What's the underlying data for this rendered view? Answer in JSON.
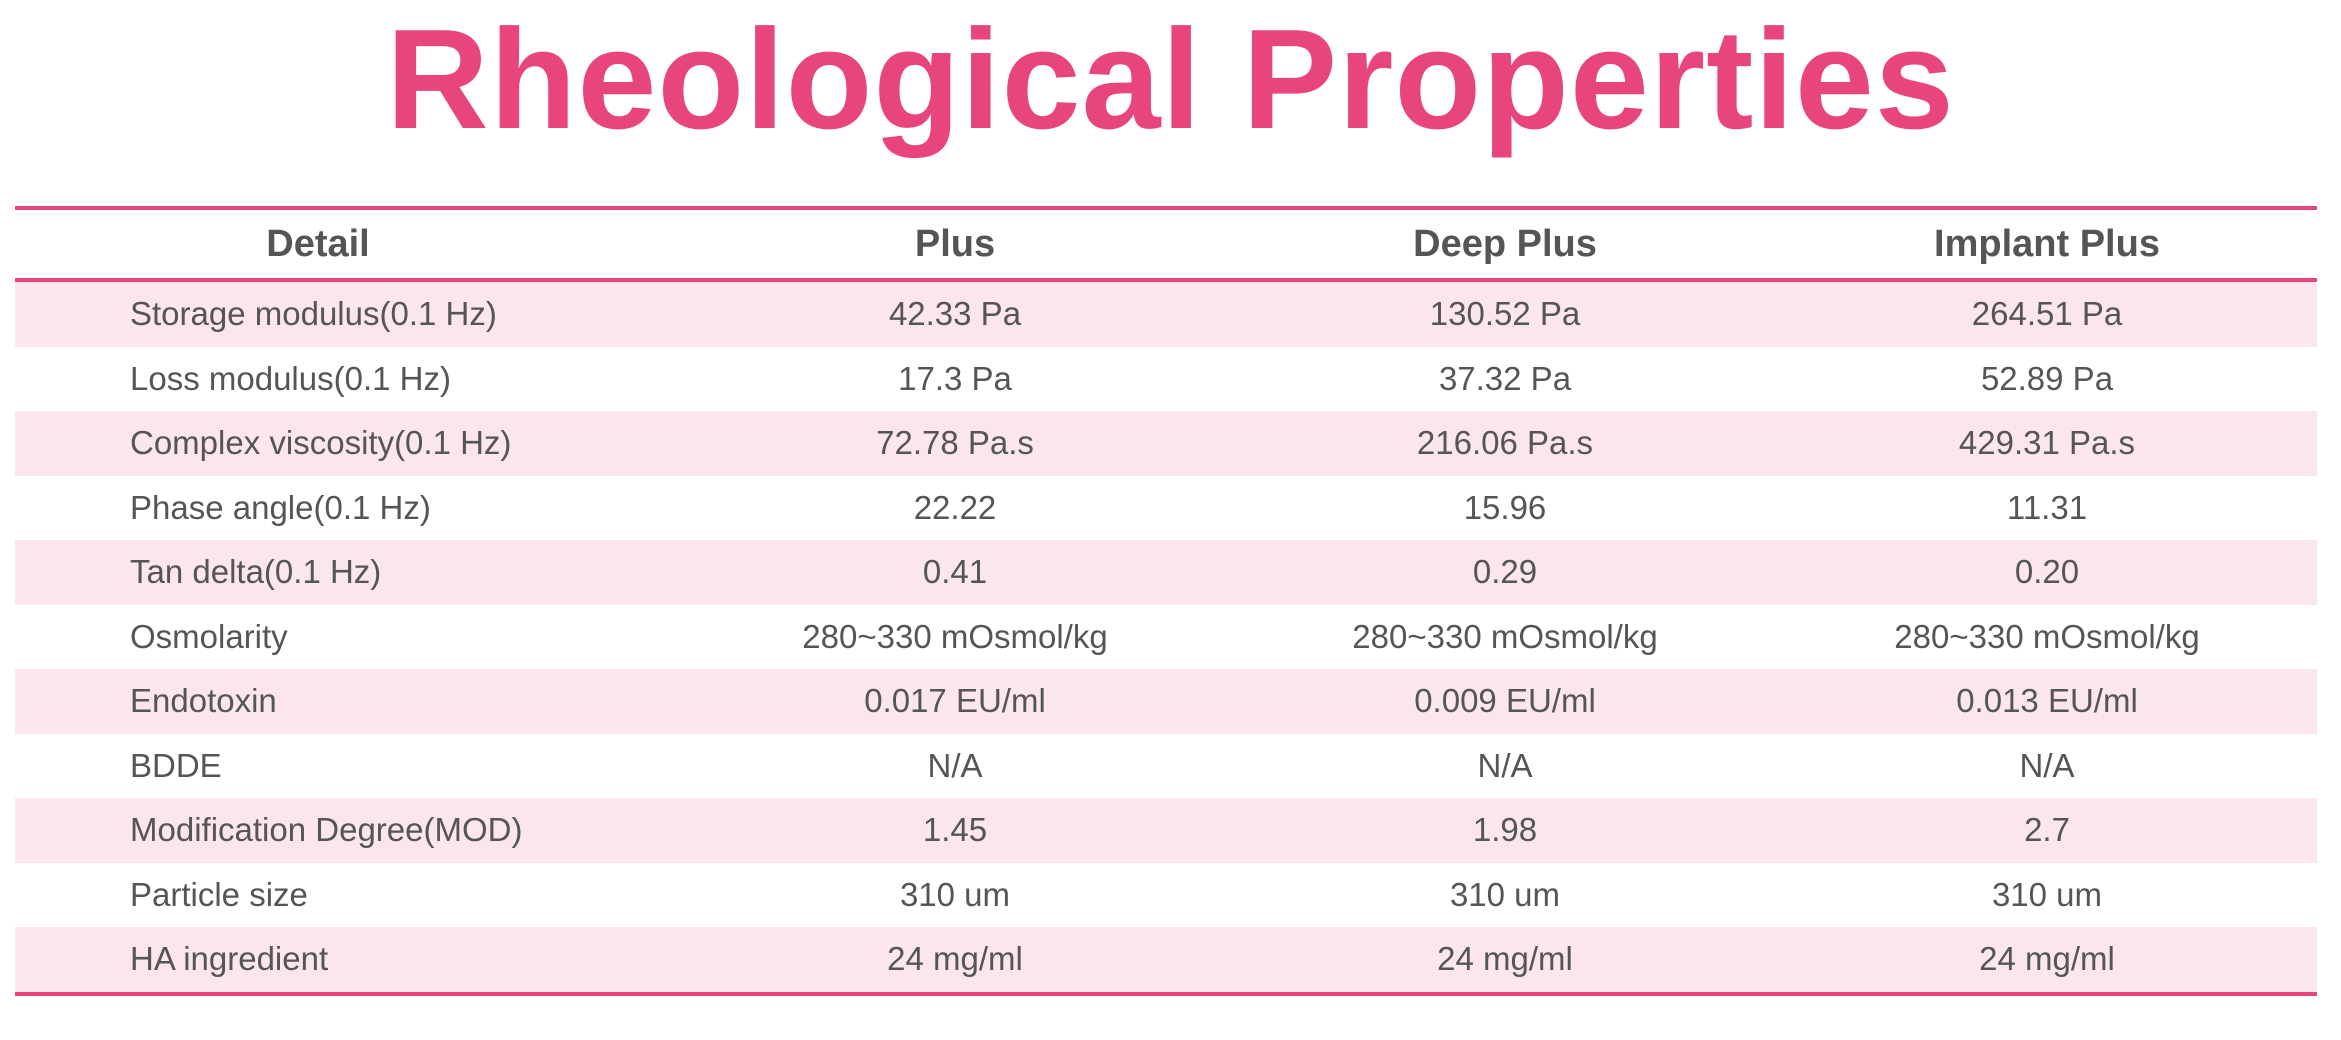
{
  "header": {
    "title": "Rheological Properties"
  },
  "table": {
    "columns": [
      "Detail",
      "Plus",
      "Deep Plus",
      "Implant Plus"
    ],
    "rows": [
      [
        "Storage modulus(0.1 Hz)",
        "42.33 Pa",
        "130.52 Pa",
        "264.51 Pa"
      ],
      [
        "Loss modulus(0.1 Hz)",
        "17.3 Pa",
        "37.32 Pa",
        "52.89 Pa"
      ],
      [
        "Complex viscosity(0.1 Hz)",
        "72.78 Pa.s",
        "216.06 Pa.s",
        "429.31 Pa.s"
      ],
      [
        "Phase angle(0.1 Hz)",
        "22.22",
        "15.96",
        "11.31"
      ],
      [
        "Tan delta(0.1 Hz)",
        "0.41",
        "0.29",
        "0.20"
      ],
      [
        "Osmolarity",
        "280~330 mOsmol/kg",
        "280~330 mOsmol/kg",
        "280~330 mOsmol/kg"
      ],
      [
        "Endotoxin",
        "0.017 EU/ml",
        "0.009 EU/ml",
        "0.013 EU/ml"
      ],
      [
        "BDDE",
        "N/A",
        "N/A",
        "N/A"
      ],
      [
        "Modification Degree(MOD)",
        "1.45",
        "1.98",
        "2.7"
      ],
      [
        "Particle size",
        "310 um",
        "310 um",
        "310 um"
      ],
      [
        "HA ingredient",
        "24 mg/ml",
        "24 mg/ml",
        "24 mg/ml"
      ]
    ]
  }
}
